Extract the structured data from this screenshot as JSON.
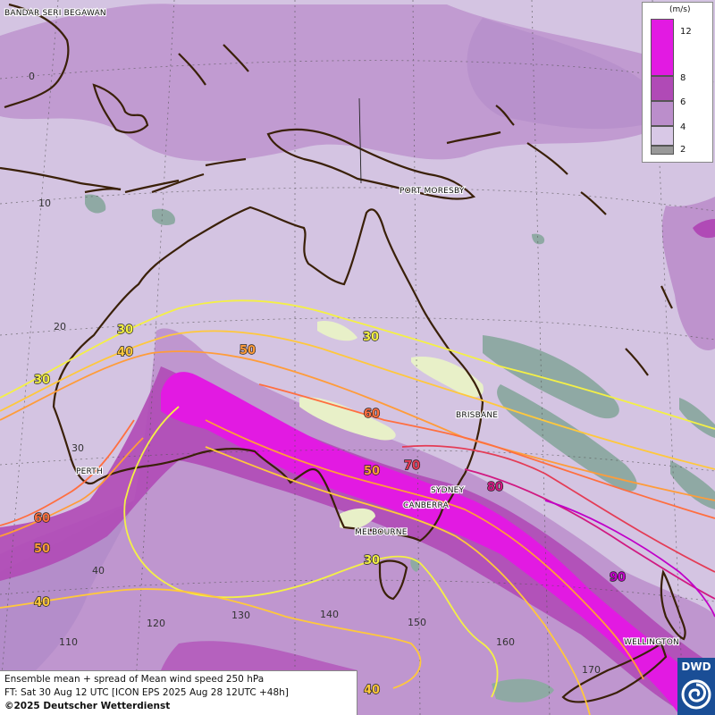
{
  "title": "Ensemble mean + spread of Mean wind speed 250 hPa",
  "forecast_time": "FT: Sat 30 Aug 12 UTC [ICON EPS 2025 Aug 28 12UTC +48h]",
  "copyright": "©2025 Deutscher Wetterdienst",
  "logo_text": "DWD",
  "legend": {
    "unit": "(m/s)",
    "ticks": [
      "12",
      "8",
      "6",
      "4",
      "2"
    ],
    "colors": [
      "#e21ae2",
      "#b04ab6",
      "#bb8ecb",
      "#d8c8e6",
      "#999999"
    ]
  },
  "cities": [
    "BANDAR SERI BEGAWAN",
    "PORT MORESBY",
    "BRISBANE",
    "PERTH",
    "SYDNEY",
    "CANBERRA",
    "MELBOURNE",
    "WELLINGTON"
  ],
  "latitude_labels": [
    "0",
    "10",
    "20",
    "30",
    "40"
  ],
  "longitude_labels": [
    "110",
    "120",
    "130",
    "140",
    "150",
    "160",
    "170"
  ],
  "isotach_labels": [
    "30",
    "40",
    "30",
    "50",
    "30",
    "60",
    "40",
    "50",
    "70",
    "80",
    "60",
    "50",
    "90",
    "30",
    "40",
    "40"
  ],
  "colors": {
    "background": "#d4c4e2",
    "spread_6": "#bb8ecb",
    "spread_8": "#b04ab6",
    "spread_12": "#e21ae2",
    "coast": "#3a2008",
    "iso_30": "#f4f046",
    "iso_40": "#ffc83c",
    "iso_50": "#ff9c3a",
    "iso_60": "#ff6f40",
    "iso_70": "#e43c56",
    "iso_80": "#d01a82",
    "iso_90": "#c000c8"
  }
}
